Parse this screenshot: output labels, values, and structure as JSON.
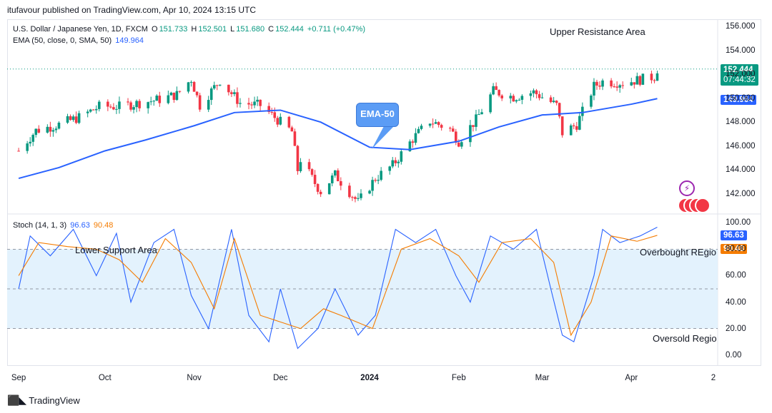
{
  "header": {
    "published": "itufavour published on TradingView.com, Apr 10, 2024 13:15 UTC"
  },
  "legend": {
    "symbol": "U.S. Dollar / Japanese Yen, 1D, FXCM",
    "open_label": "O",
    "open": "151.733",
    "high_label": "H",
    "high": "152.501",
    "low_label": "L",
    "low": "151.680",
    "close_label": "C",
    "close": "152.444",
    "change": "+0.711 (+0.47%)",
    "ema_label": "EMA (50, close, 0, SMA, 50)",
    "ema_value": "149.964"
  },
  "stoch_legend": {
    "label": "Stoch (14, 1, 3)",
    "k": "96.63",
    "d": "90.48"
  },
  "annotations": {
    "upper": "Upper Resistance Area",
    "lower": "Lower Support Area",
    "overbought": "Overbought REgio",
    "oversold": "Oversold Regio",
    "callout": "EMA-50"
  },
  "price_tags": {
    "last_price": "152.444",
    "countdown": "07:44:32",
    "ema": "149.964",
    "k": "96.63",
    "d": "90.48"
  },
  "footer": {
    "brand": "TradingView",
    "logo": "tradingview-logo-icon"
  },
  "colors": {
    "up": "#089981",
    "down": "#f23645",
    "ema": "#2962ff",
    "k_line": "#2962ff",
    "d_line": "#f57c00",
    "band": "#e3f2fd",
    "callout": "#5b9cf5"
  },
  "chart_data": [
    {
      "type": "candlestick",
      "title": "U.S. Dollar / Japanese Yen, 1D, FXCM",
      "y_ticks": [
        "156.000",
        "154.000",
        "152.000",
        "150.000",
        "148.000",
        "146.000",
        "144.000",
        "142.000"
      ],
      "x_ticks": [
        "Sep",
        "Oct",
        "Nov",
        "Dec",
        "2024",
        "Feb",
        "Mar",
        "Apr",
        "2"
      ],
      "ylim": [
        140.5,
        156.6
      ],
      "last_price_line": 152.444,
      "close_path": [
        {
          "date": "2023-09-01",
          "close": 145.6
        },
        {
          "date": "2023-09-07",
          "close": 147.3
        },
        {
          "date": "2023-09-15",
          "close": 147.8
        },
        {
          "date": "2023-09-22",
          "close": 148.4
        },
        {
          "date": "2023-09-29",
          "close": 149.3
        },
        {
          "date": "2023-10-06",
          "close": 149.3
        },
        {
          "date": "2023-10-13",
          "close": 149.6
        },
        {
          "date": "2023-10-20",
          "close": 149.9
        },
        {
          "date": "2023-10-26",
          "close": 150.3
        },
        {
          "date": "2023-10-31",
          "close": 151.6
        },
        {
          "date": "2023-11-03",
          "close": 149.4
        },
        {
          "date": "2023-11-10",
          "close": 151.5
        },
        {
          "date": "2023-11-14",
          "close": 150.4
        },
        {
          "date": "2023-11-17",
          "close": 149.6
        },
        {
          "date": "2023-11-24",
          "close": 149.4
        },
        {
          "date": "2023-11-30",
          "close": 148.2
        },
        {
          "date": "2023-12-05",
          "close": 147.2
        },
        {
          "date": "2023-12-07",
          "close": 144.0
        },
        {
          "date": "2023-12-08",
          "close": 144.9
        },
        {
          "date": "2023-12-13",
          "close": 142.9
        },
        {
          "date": "2023-12-15",
          "close": 142.2
        },
        {
          "date": "2023-12-20",
          "close": 143.6
        },
        {
          "date": "2023-12-28",
          "close": 141.3
        },
        {
          "date": "2024-01-03",
          "close": 143.3
        },
        {
          "date": "2024-01-09",
          "close": 144.4
        },
        {
          "date": "2024-01-16",
          "close": 146.6
        },
        {
          "date": "2024-01-22",
          "close": 148.1
        },
        {
          "date": "2024-01-29",
          "close": 147.4
        },
        {
          "date": "2024-02-01",
          "close": 146.4
        },
        {
          "date": "2024-02-07",
          "close": 148.2
        },
        {
          "date": "2024-02-13",
          "close": 150.6
        },
        {
          "date": "2024-02-20",
          "close": 150.1
        },
        {
          "date": "2024-02-27",
          "close": 150.5
        },
        {
          "date": "2024-03-01",
          "close": 150.1
        },
        {
          "date": "2024-03-06",
          "close": 149.4
        },
        {
          "date": "2024-03-08",
          "close": 147.1
        },
        {
          "date": "2024-03-13",
          "close": 147.8
        },
        {
          "date": "2024-03-19",
          "close": 151.0
        },
        {
          "date": "2024-03-22",
          "close": 151.4
        },
        {
          "date": "2024-03-29",
          "close": 151.3
        },
        {
          "date": "2024-04-05",
          "close": 151.6
        },
        {
          "date": "2024-04-09",
          "close": 151.8
        },
        {
          "date": "2024-04-10",
          "close": 152.444
        }
      ],
      "series": [
        {
          "name": "EMA (50, close, 0, SMA, 50)",
          "values": [
            {
              "date": "2023-09-01",
              "value": 143.3
            },
            {
              "date": "2023-09-15",
              "value": 144.2
            },
            {
              "date": "2023-10-01",
              "value": 145.6
            },
            {
              "date": "2023-10-15",
              "value": 146.5
            },
            {
              "date": "2023-11-01",
              "value": 147.7
            },
            {
              "date": "2023-11-15",
              "value": 148.8
            },
            {
              "date": "2023-12-01",
              "value": 149.0
            },
            {
              "date": "2023-12-15",
              "value": 148.0
            },
            {
              "date": "2024-01-01",
              "value": 145.9
            },
            {
              "date": "2024-01-15",
              "value": 145.7
            },
            {
              "date": "2024-02-01",
              "value": 146.4
            },
            {
              "date": "2024-02-15",
              "value": 147.6
            },
            {
              "date": "2024-03-01",
              "value": 148.6
            },
            {
              "date": "2024-03-15",
              "value": 148.8
            },
            {
              "date": "2024-04-01",
              "value": 149.5
            },
            {
              "date": "2024-04-10",
              "value": 149.964
            }
          ]
        }
      ]
    },
    {
      "type": "line",
      "title": "Stoch (14, 1, 3)",
      "y_ticks": [
        "100.00",
        "80.00",
        "60.00",
        "40.00",
        "20.00",
        "0.00"
      ],
      "ylim": [
        -5,
        105
      ],
      "bands": [
        20,
        50,
        80
      ],
      "series": [
        {
          "name": "%K",
          "values": [
            {
              "date": "2023-09-01",
              "value": 50
            },
            {
              "date": "2023-09-05",
              "value": 90
            },
            {
              "date": "2023-09-12",
              "value": 75
            },
            {
              "date": "2023-09-20",
              "value": 95
            },
            {
              "date": "2023-09-28",
              "value": 60
            },
            {
              "date": "2023-10-05",
              "value": 92
            },
            {
              "date": "2023-10-10",
              "value": 40
            },
            {
              "date": "2023-10-18",
              "value": 85
            },
            {
              "date": "2023-10-25",
              "value": 95
            },
            {
              "date": "2023-10-31",
              "value": 45
            },
            {
              "date": "2023-11-06",
              "value": 20
            },
            {
              "date": "2023-11-14",
              "value": 95
            },
            {
              "date": "2023-11-20",
              "value": 30
            },
            {
              "date": "2023-11-27",
              "value": 10
            },
            {
              "date": "2023-12-01",
              "value": 50
            },
            {
              "date": "2023-12-07",
              "value": 5
            },
            {
              "date": "2023-12-14",
              "value": 20
            },
            {
              "date": "2023-12-20",
              "value": 50
            },
            {
              "date": "2023-12-28",
              "value": 15
            },
            {
              "date": "2024-01-03",
              "value": 30
            },
            {
              "date": "2024-01-10",
              "value": 95
            },
            {
              "date": "2024-01-17",
              "value": 85
            },
            {
              "date": "2024-01-24",
              "value": 95
            },
            {
              "date": "2024-01-31",
              "value": 60
            },
            {
              "date": "2024-02-05",
              "value": 40
            },
            {
              "date": "2024-02-12",
              "value": 90
            },
            {
              "date": "2024-02-20",
              "value": 80
            },
            {
              "date": "2024-02-28",
              "value": 95
            },
            {
              "date": "2024-03-04",
              "value": 50
            },
            {
              "date": "2024-03-08",
              "value": 15
            },
            {
              "date": "2024-03-12",
              "value": 10
            },
            {
              "date": "2024-03-19",
              "value": 60
            },
            {
              "date": "2024-03-22",
              "value": 95
            },
            {
              "date": "2024-03-28",
              "value": 85
            },
            {
              "date": "2024-04-04",
              "value": 90
            },
            {
              "date": "2024-04-10",
              "value": 96.63
            }
          ]
        },
        {
          "name": "%D",
          "values": [
            {
              "date": "2023-09-01",
              "value": 60
            },
            {
              "date": "2023-09-08",
              "value": 85
            },
            {
              "date": "2023-09-18",
              "value": 82
            },
            {
              "date": "2023-09-28",
              "value": 80
            },
            {
              "date": "2023-10-06",
              "value": 72
            },
            {
              "date": "2023-10-14",
              "value": 55
            },
            {
              "date": "2023-10-22",
              "value": 88
            },
            {
              "date": "2023-10-31",
              "value": 70
            },
            {
              "date": "2023-11-08",
              "value": 35
            },
            {
              "date": "2023-11-15",
              "value": 88
            },
            {
              "date": "2023-11-24",
              "value": 30
            },
            {
              "date": "2023-12-01",
              "value": 25
            },
            {
              "date": "2023-12-08",
              "value": 20
            },
            {
              "date": "2023-12-16",
              "value": 35
            },
            {
              "date": "2023-12-22",
              "value": 30
            },
            {
              "date": "2024-01-02",
              "value": 20
            },
            {
              "date": "2024-01-12",
              "value": 80
            },
            {
              "date": "2024-01-22",
              "value": 88
            },
            {
              "date": "2024-02-01",
              "value": 75
            },
            {
              "date": "2024-02-08",
              "value": 55
            },
            {
              "date": "2024-02-16",
              "value": 85
            },
            {
              "date": "2024-02-26",
              "value": 88
            },
            {
              "date": "2024-03-05",
              "value": 70
            },
            {
              "date": "2024-03-11",
              "value": 15
            },
            {
              "date": "2024-03-18",
              "value": 40
            },
            {
              "date": "2024-03-25",
              "value": 90
            },
            {
              "date": "2024-04-03",
              "value": 86
            },
            {
              "date": "2024-04-10",
              "value": 90.48
            }
          ]
        }
      ]
    }
  ]
}
